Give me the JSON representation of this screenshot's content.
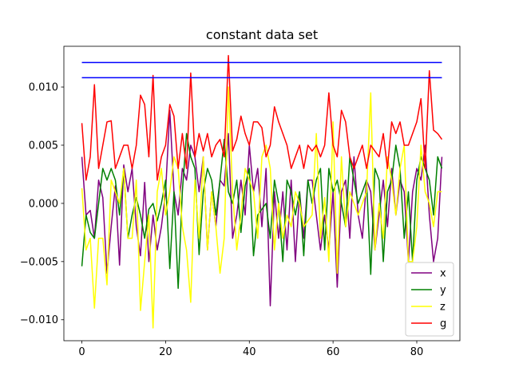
{
  "chart_data": {
    "type": "line",
    "title": "constant data set",
    "xlabel": "",
    "ylabel": "",
    "xlim": [
      -4.3,
      90.3
    ],
    "ylim": [
      -0.0118,
      0.0135
    ],
    "xticks": [
      0,
      20,
      40,
      60,
      80
    ],
    "xtick_labels": [
      "0",
      "20",
      "40",
      "60",
      "80"
    ],
    "yticks": [
      -0.01,
      -0.005,
      0.0,
      0.005,
      0.01
    ],
    "ytick_labels": [
      "−0.010",
      "−0.005",
      "0.000",
      "0.005",
      "0.010"
    ],
    "grid": false,
    "legend_position": "lower-right",
    "reference_lines": [
      {
        "y": 0.0121,
        "x_range": [
          0,
          86
        ],
        "color": "#0000ff"
      },
      {
        "y": 0.0108,
        "x_range": [
          0,
          86
        ],
        "color": "#0000ff"
      }
    ],
    "x": [
      0,
      1,
      2,
      3,
      4,
      5,
      6,
      7,
      8,
      9,
      10,
      11,
      12,
      13,
      14,
      15,
      16,
      17,
      18,
      19,
      20,
      21,
      22,
      23,
      24,
      25,
      26,
      27,
      28,
      29,
      30,
      31,
      32,
      33,
      34,
      35,
      36,
      37,
      38,
      39,
      40,
      41,
      42,
      43,
      44,
      45,
      46,
      47,
      48,
      49,
      50,
      51,
      52,
      53,
      54,
      55,
      56,
      57,
      58,
      59,
      60,
      61,
      62,
      63,
      64,
      65,
      66,
      67,
      68,
      69,
      70,
      71,
      72,
      73,
      74,
      75,
      76,
      77,
      78,
      79,
      80,
      81,
      82,
      83,
      84,
      85,
      86
    ],
    "series": [
      {
        "name": "x",
        "color": "#800080",
        "values": [
          0.004,
          -0.001,
          -0.0006,
          -0.003,
          0.002,
          0.0005,
          -0.006,
          -0.002,
          0.0015,
          -0.0053,
          0.0033,
          0.001,
          0.003,
          -0.002,
          -0.0045,
          0.0018,
          -0.005,
          -0.001,
          -0.004,
          -0.002,
          0.001,
          0.008,
          0.001,
          -0.001,
          0.003,
          0.002,
          0.005,
          0.004,
          0.001,
          0.004,
          -0.004,
          0.001,
          -0.002,
          0.002,
          0.0015,
          0.006,
          -0.003,
          -0.001,
          0.002,
          -0.001,
          0.005,
          0.001,
          0.003,
          -0.002,
          0.003,
          -0.0088,
          0.001,
          -0.003,
          0.001,
          -0.004,
          0.002,
          -0.005,
          0.001,
          -0.003,
          0.002,
          0.002,
          -0.001,
          -0.004,
          -0.001,
          -0.004,
          0.001,
          -0.0072,
          0.001,
          0.002,
          -0.003,
          0.004,
          -0.001,
          -0.003,
          0.002,
          0.001,
          -0.004,
          -0.001,
          0.002,
          -0.002,
          0.003,
          -0.001,
          0.002,
          0.001,
          -0.005,
          0.001,
          0.003,
          0.002,
          0.005,
          -0.001,
          -0.005,
          -0.003,
          0.004
        ]
      },
      {
        "name": "y",
        "color": "#008000",
        "values": [
          -0.0054,
          -0.001,
          -0.0025,
          -0.003,
          0.0,
          0.003,
          0.002,
          0.003,
          0.002,
          -0.001,
          0.003,
          -0.003,
          -0.001,
          0.0005,
          -0.001,
          -0.003,
          -0.0005,
          0.0,
          -0.0015,
          0.0,
          0.002,
          -0.0056,
          0.001,
          -0.0073,
          0.001,
          0.006,
          0.004,
          0.003,
          -0.0044,
          0.001,
          0.003,
          0.002,
          -0.001,
          0.002,
          0.0055,
          0.001,
          0.0,
          0.002,
          -0.0025,
          0.0015,
          0.003,
          -0.0045,
          -0.001,
          -0.0005,
          0.0,
          -0.003,
          0.002,
          0.0,
          -0.005,
          0.002,
          0.001,
          -0.001,
          0.001,
          -0.0045,
          0.002,
          0.0,
          0.002,
          0.003,
          -0.004,
          0.003,
          0.001,
          0.002,
          0.0,
          -0.002,
          0.004,
          0.002,
          0.0,
          0.001,
          0.002,
          -0.0061,
          0.003,
          0.002,
          -0.005,
          0.001,
          0.002,
          0.005,
          0.003,
          -0.003,
          0.001,
          -0.005,
          0.002,
          0.004,
          0.003,
          0.002,
          -0.001,
          0.004,
          0.003
        ]
      },
      {
        "name": "z",
        "color": "#ffff00",
        "values": [
          0.0013,
          -0.004,
          -0.003,
          -0.009,
          -0.003,
          -0.003,
          -0.007,
          0.002,
          0.001,
          0.0,
          0.003,
          -0.003,
          -0.003,
          0.002,
          -0.0092,
          -0.005,
          -0.001,
          -0.0107,
          0.001,
          0.003,
          -0.001,
          0.001,
          0.004,
          0.003,
          -0.002,
          -0.004,
          -0.0085,
          0.002,
          -0.003,
          0.004,
          -0.004,
          0.001,
          -0.002,
          -0.006,
          -0.003,
          0.01,
          0.001,
          -0.004,
          -0.001,
          0.003,
          0.002,
          0.001,
          -0.003,
          0.004,
          0.005,
          0.003,
          -0.004,
          0.0,
          -0.003,
          -0.001,
          -0.002,
          0.001,
          0.0,
          -0.002,
          -0.0015,
          -0.001,
          0.006,
          -0.003,
          0.0005,
          -0.005,
          0.007,
          -0.006,
          0.004,
          -0.002,
          0.001,
          0.0,
          -0.001,
          0.0,
          0.001,
          0.0095,
          -0.004,
          0.0,
          -0.003,
          0.004,
          0.002,
          -0.001,
          0.003,
          0.005,
          -0.005,
          -0.005,
          -0.002,
          0.005,
          0.001,
          0.0,
          -0.002,
          0.001,
          0.001
        ]
      },
      {
        "name": "g",
        "color": "#ff0000",
        "values": [
          0.0069,
          0.002,
          0.004,
          0.0102,
          0.003,
          0.005,
          0.007,
          0.0071,
          0.003,
          0.004,
          0.005,
          0.005,
          0.003,
          0.005,
          0.0093,
          0.0085,
          0.004,
          0.011,
          0.002,
          0.004,
          0.005,
          0.0085,
          0.0075,
          0.003,
          0.006,
          0.003,
          0.0112,
          0.004,
          0.006,
          0.0045,
          0.006,
          0.004,
          0.005,
          0.0055,
          0.004,
          0.0127,
          0.0045,
          0.0055,
          0.0075,
          0.006,
          0.005,
          0.007,
          0.007,
          0.0065,
          0.004,
          0.005,
          0.0083,
          0.007,
          0.006,
          0.005,
          0.003,
          0.004,
          0.005,
          0.003,
          0.005,
          0.0045,
          0.005,
          0.004,
          0.005,
          0.0095,
          0.005,
          0.004,
          0.008,
          0.007,
          0.004,
          0.003,
          0.004,
          0.005,
          0.003,
          0.005,
          0.0045,
          0.004,
          0.006,
          0.003,
          0.007,
          0.006,
          0.007,
          0.005,
          0.005,
          0.006,
          0.007,
          0.009,
          0.003,
          0.0114,
          0.0063,
          0.006,
          0.0055
        ]
      }
    ]
  }
}
